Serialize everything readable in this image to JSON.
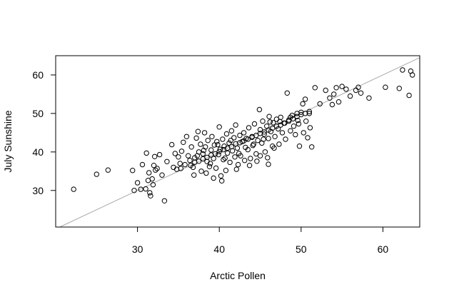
{
  "chart_data": {
    "type": "scatter",
    "title": "",
    "xlabel": "Arctic Pollen",
    "ylabel": "July Sunshine",
    "xlim": [
      20.0,
      64.5
    ],
    "ylim": [
      20.5,
      65.0
    ],
    "xticks": [
      30,
      40,
      50,
      60
    ],
    "yticks": [
      30,
      40,
      50,
      60
    ],
    "xtick_labels": [
      "30",
      "40",
      "50",
      "60"
    ],
    "ytick_labels": [
      "30",
      "40",
      "50",
      "60"
    ],
    "grid": false,
    "legend": "none",
    "reference_line": {
      "slope": 1,
      "intercept": 0,
      "color": "#aaaaaa"
    },
    "series": [
      {
        "marker": "open-circle",
        "color": "#000000",
        "points": [
          [
            22.2,
            30.3
          ],
          [
            25.0,
            34.2
          ],
          [
            26.4,
            35.3
          ],
          [
            29.4,
            35.2
          ],
          [
            29.6,
            30.0
          ],
          [
            30.0,
            32.0
          ],
          [
            30.4,
            30.3
          ],
          [
            30.6,
            36.7
          ],
          [
            31.0,
            30.4
          ],
          [
            31.1,
            39.7
          ],
          [
            31.3,
            32.6
          ],
          [
            31.4,
            34.6
          ],
          [
            31.5,
            29.4
          ],
          [
            31.6,
            28.6
          ],
          [
            31.8,
            33.0
          ],
          [
            31.9,
            31.5
          ],
          [
            32.0,
            36.5
          ],
          [
            32.1,
            38.8
          ],
          [
            32.2,
            35.3
          ],
          [
            32.4,
            35.7
          ],
          [
            32.7,
            39.3
          ],
          [
            33.0,
            34.0
          ],
          [
            33.3,
            27.3
          ],
          [
            33.6,
            37.5
          ],
          [
            34.2,
            41.9
          ],
          [
            34.4,
            36.0
          ],
          [
            34.6,
            39.6
          ],
          [
            34.8,
            35.5
          ],
          [
            35.0,
            38.7
          ],
          [
            35.2,
            37.0
          ],
          [
            35.4,
            40.2
          ],
          [
            35.6,
            42.5
          ],
          [
            35.8,
            36.7
          ],
          [
            36.0,
            44.0
          ],
          [
            36.2,
            39.0
          ],
          [
            36.4,
            37.8
          ],
          [
            36.6,
            41.3
          ],
          [
            36.8,
            36.0
          ],
          [
            37.0,
            38.5
          ],
          [
            37.2,
            43.6
          ],
          [
            37.4,
            45.3
          ],
          [
            37.5,
            40.0
          ],
          [
            37.7,
            42.0
          ],
          [
            37.8,
            35.0
          ],
          [
            38.0,
            39.5
          ],
          [
            38.2,
            45.0
          ],
          [
            38.3,
            41.3
          ],
          [
            38.5,
            37.5
          ],
          [
            38.6,
            43.0
          ],
          [
            38.8,
            36.2
          ],
          [
            39.0,
            40.5
          ],
          [
            39.1,
            44.0
          ],
          [
            39.3,
            38.3
          ],
          [
            39.4,
            41.8
          ],
          [
            39.6,
            35.8
          ],
          [
            39.7,
            42.7
          ],
          [
            39.9,
            39.3
          ],
          [
            40.0,
            46.5
          ],
          [
            40.1,
            40.7
          ],
          [
            40.2,
            33.8
          ],
          [
            40.4,
            43.3
          ],
          [
            40.5,
            38.0
          ],
          [
            40.6,
            41.5
          ],
          [
            40.8,
            35.2
          ],
          [
            40.9,
            44.7
          ],
          [
            41.0,
            39.7
          ],
          [
            41.2,
            42.3
          ],
          [
            41.3,
            37.3
          ],
          [
            41.5,
            45.5
          ],
          [
            41.6,
            40.3
          ],
          [
            41.8,
            43.7
          ],
          [
            41.9,
            38.7
          ],
          [
            42.0,
            47.0
          ],
          [
            42.2,
            41.0
          ],
          [
            42.3,
            36.7
          ],
          [
            42.5,
            44.3
          ],
          [
            42.6,
            39.0
          ],
          [
            42.8,
            42.7
          ],
          [
            43.0,
            45.0
          ],
          [
            43.1,
            37.8
          ],
          [
            43.3,
            43.5
          ],
          [
            43.5,
            40.6
          ],
          [
            43.6,
            46.3
          ],
          [
            43.8,
            38.3
          ],
          [
            44.0,
            44.0
          ],
          [
            44.1,
            41.7
          ],
          [
            44.3,
            47.3
          ],
          [
            44.5,
            39.5
          ],
          [
            44.7,
            43.0
          ],
          [
            44.9,
            51.0
          ],
          [
            45.0,
            45.8
          ],
          [
            45.2,
            42.3
          ],
          [
            45.3,
            48.0
          ],
          [
            45.5,
            44.6
          ],
          [
            45.6,
            40.0
          ],
          [
            45.8,
            46.7
          ],
          [
            46.0,
            43.5
          ],
          [
            46.1,
            49.2
          ],
          [
            46.3,
            45.3
          ],
          [
            46.5,
            41.5
          ],
          [
            46.6,
            47.6
          ],
          [
            46.8,
            44.0
          ],
          [
            47.0,
            48.5
          ],
          [
            47.2,
            46.0
          ],
          [
            47.3,
            42.0
          ],
          [
            47.5,
            49.0
          ],
          [
            47.7,
            45.0
          ],
          [
            47.9,
            47.5
          ],
          [
            48.1,
            43.3
          ],
          [
            48.3,
            55.3
          ],
          [
            48.5,
            48.3
          ],
          [
            48.7,
            45.5
          ],
          [
            48.9,
            49.5
          ],
          [
            49.1,
            46.7
          ],
          [
            49.3,
            44.5
          ],
          [
            49.5,
            50.0
          ],
          [
            49.7,
            47.3
          ],
          [
            49.8,
            41.5
          ],
          [
            50.0,
            50.3
          ],
          [
            50.2,
            52.5
          ],
          [
            50.3,
            45.0
          ],
          [
            50.5,
            53.7
          ],
          [
            50.6,
            48.0
          ],
          [
            50.8,
            43.7
          ],
          [
            51.0,
            50.0
          ],
          [
            51.1,
            46.3
          ],
          [
            51.3,
            41.3
          ],
          [
            51.7,
            56.7
          ],
          [
            52.3,
            52.5
          ],
          [
            53.0,
            56.0
          ],
          [
            53.5,
            54.0
          ],
          [
            53.8,
            52.3
          ],
          [
            54.0,
            55.0
          ],
          [
            54.3,
            56.7
          ],
          [
            54.6,
            53.0
          ],
          [
            55.0,
            57.0
          ],
          [
            55.5,
            56.3
          ],
          [
            56.0,
            54.5
          ],
          [
            56.7,
            56.0
          ],
          [
            57.0,
            56.8
          ],
          [
            57.3,
            55.3
          ],
          [
            58.3,
            54.0
          ],
          [
            60.3,
            56.8
          ],
          [
            62.0,
            56.5
          ],
          [
            62.4,
            61.3
          ],
          [
            63.2,
            54.7
          ],
          [
            63.4,
            61.0
          ],
          [
            63.6,
            60.0
          ],
          [
            36.5,
            36.5
          ],
          [
            37.0,
            37.3
          ],
          [
            37.5,
            37.6
          ],
          [
            38.0,
            38.2
          ],
          [
            38.5,
            38.6
          ],
          [
            39.0,
            39.2
          ],
          [
            39.5,
            39.5
          ],
          [
            40.0,
            40.1
          ],
          [
            40.5,
            40.6
          ],
          [
            41.0,
            41.0
          ],
          [
            41.5,
            41.4
          ],
          [
            42.0,
            42.1
          ],
          [
            42.5,
            42.4
          ],
          [
            43.0,
            42.9
          ],
          [
            43.5,
            43.3
          ],
          [
            44.0,
            43.8
          ],
          [
            44.5,
            44.3
          ],
          [
            45.0,
            44.8
          ],
          [
            45.5,
            45.2
          ],
          [
            46.0,
            45.7
          ],
          [
            46.5,
            46.2
          ],
          [
            47.0,
            46.7
          ],
          [
            47.5,
            47.0
          ],
          [
            48.0,
            47.5
          ],
          [
            48.5,
            48.0
          ],
          [
            49.0,
            48.6
          ],
          [
            49.5,
            49.2
          ],
          [
            50.0,
            49.7
          ],
          [
            50.5,
            50.0
          ],
          [
            51.0,
            50.5
          ],
          [
            37.3,
            39.0
          ],
          [
            38.1,
            40.4
          ],
          [
            38.9,
            37.0
          ],
          [
            39.8,
            41.9
          ],
          [
            40.7,
            38.4
          ],
          [
            41.4,
            43.0
          ],
          [
            42.4,
            39.6
          ],
          [
            43.2,
            41.2
          ],
          [
            44.2,
            42.0
          ],
          [
            45.4,
            43.3
          ],
          [
            46.2,
            47.8
          ],
          [
            47.4,
            47.9
          ],
          [
            48.7,
            49.0
          ],
          [
            49.6,
            48.2
          ],
          [
            46.7,
            41.0
          ],
          [
            45.9,
            38.5
          ],
          [
            44.6,
            37.6
          ],
          [
            43.7,
            36.5
          ],
          [
            42.1,
            35.5
          ],
          [
            39.3,
            33.2
          ],
          [
            38.4,
            34.5
          ],
          [
            36.9,
            34.0
          ],
          [
            35.3,
            35.7
          ],
          [
            40.3,
            32.5
          ],
          [
            45.0,
            39.0
          ],
          [
            46.0,
            36.8
          ]
        ]
      }
    ]
  }
}
